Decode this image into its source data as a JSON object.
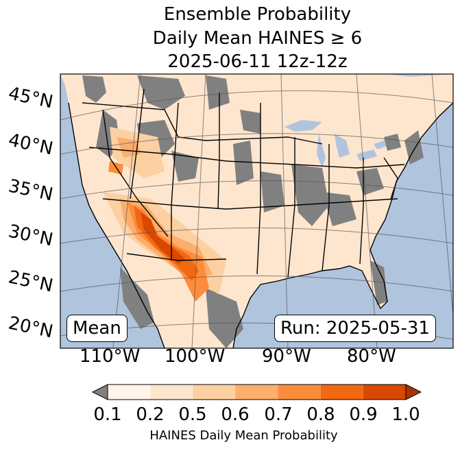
{
  "title": {
    "line1": "Ensemble Probability",
    "line2": "Daily Mean HAINES ≥ 6",
    "line3": "2025-06-11 12z-12z"
  },
  "map": {
    "lat_labels": [
      "45°N",
      "40°N",
      "35°N",
      "30°N",
      "25°N",
      "20°N"
    ],
    "lon_labels": [
      "110°W",
      "100°W",
      "90°W",
      "80°W"
    ],
    "mean_label": "Mean",
    "run_label": "Run: 2025-05-31",
    "colors": {
      "ocean": "#b0c4de",
      "missing": "#808080",
      "border": "#000000",
      "grid": "#555555"
    }
  },
  "colorbar": {
    "ticks": [
      "0.1",
      "0.2",
      "0.5",
      "0.6",
      "0.7",
      "0.8",
      "0.9",
      "1.0"
    ],
    "label": "HAINES Daily Mean Probability",
    "colors": [
      "#808080",
      "#fff5eb",
      "#fee6ce",
      "#fdd0a2",
      "#fdae6b",
      "#fd8d3c",
      "#f16913",
      "#d94801",
      "#a63603"
    ]
  }
}
